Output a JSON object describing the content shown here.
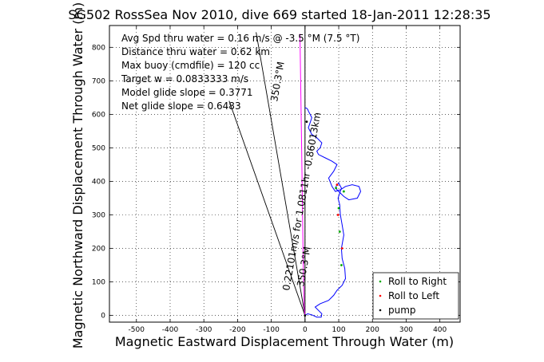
{
  "chart_data": {
    "type": "line",
    "title": "SG502 RossSea Nov 2010, dive 669 started 18-Jan-2011 12:28:35",
    "xlabel": "Magnetic Eastward Displacement Through Water (m)",
    "ylabel": "Magnetic Northward Displacement Through Water (m)",
    "xlim": [
      -580,
      460
    ],
    "ylim": [
      -20,
      865
    ],
    "xticks": [
      -500,
      -400,
      -300,
      -200,
      -100,
      0,
      100,
      200,
      300,
      400
    ],
    "yticks": [
      0,
      100,
      200,
      300,
      400,
      500,
      600,
      700,
      800
    ],
    "grid": true,
    "legend_position": "bottom-right",
    "annotations": [
      "Avg Spd thru water = 0.16 m/s @ -3.5 °M (7.5 °T)",
      "Distance thru water = 0.62 km",
      "Max buoy (cmdfile) = 120 cc",
      "Target w = 0.0833333 m/s",
      "Model glide slope = 0.3771",
      "Net glide slope = 0.6483"
    ],
    "vector_labels": [
      "0.22101m/s for 1.0811hr -0.86013km",
      "350.3°M",
      "350.3°M"
    ],
    "legend": [
      "Roll to Right",
      "Roll to Left",
      "pump"
    ],
    "series": [
      {
        "name": "track",
        "color": "#0000ff",
        "x": [
          0,
          8,
          20,
          35,
          48,
          50,
          40,
          30,
          45,
          70,
          85,
          95,
          110,
          120,
          118,
          110,
          108,
          115,
          110,
          105,
          103,
          98,
          103,
          108,
          100,
          95,
          90,
          100,
          115,
          130,
          155,
          165,
          160,
          140,
          120,
          105,
          90,
          80,
          70,
          85,
          95,
          80,
          60,
          40,
          35,
          45,
          50,
          35,
          20,
          15,
          10,
          15,
          20,
          15,
          10,
          8,
          5,
          0
        ],
        "y": [
          0,
          5,
          2,
          -5,
          -5,
          5,
          15,
          25,
          35,
          45,
          60,
          75,
          90,
          110,
          140,
          170,
          200,
          240,
          270,
          300,
          330,
          350,
          365,
          380,
          395,
          390,
          380,
          370,
          355,
          345,
          350,
          370,
          385,
          390,
          385,
          375,
          370,
          385,
          410,
          430,
          450,
          460,
          470,
          480,
          490,
          500,
          515,
          530,
          540,
          550,
          560,
          575,
          590,
          600,
          610,
          615,
          618,
          620
        ]
      },
      {
        "name": "current-track",
        "color": "#ff00ff",
        "x": [
          0,
          -3,
          -6,
          -10,
          -15
        ],
        "y": [
          0,
          30,
          200,
          500,
          840
        ]
      }
    ],
    "vectors": [
      {
        "name": "current-vector",
        "x": [
          0,
          -145
        ],
        "y": [
          0,
          845
        ]
      },
      {
        "name": "glide-vector",
        "x": [
          0,
          -225
        ],
        "y": [
          0,
          640
        ]
      }
    ],
    "north_line": {
      "x": [
        0,
        0
      ],
      "y": [
        -20,
        865
      ]
    },
    "markers": {
      "roll_right": {
        "color": "#00aa00",
        "x": [
          108,
          103,
          100,
          115,
          92
        ],
        "y": [
          150,
          250,
          320,
          370,
          380
        ]
      },
      "roll_left": {
        "color": "#ff0000",
        "x": [
          110,
          98,
          95
        ],
        "y": [
          200,
          300,
          390
        ]
      },
      "pump": {
        "color": "#000000",
        "x": [
          0,
          5
        ],
        "y": [
          0,
          578
        ]
      }
    }
  }
}
